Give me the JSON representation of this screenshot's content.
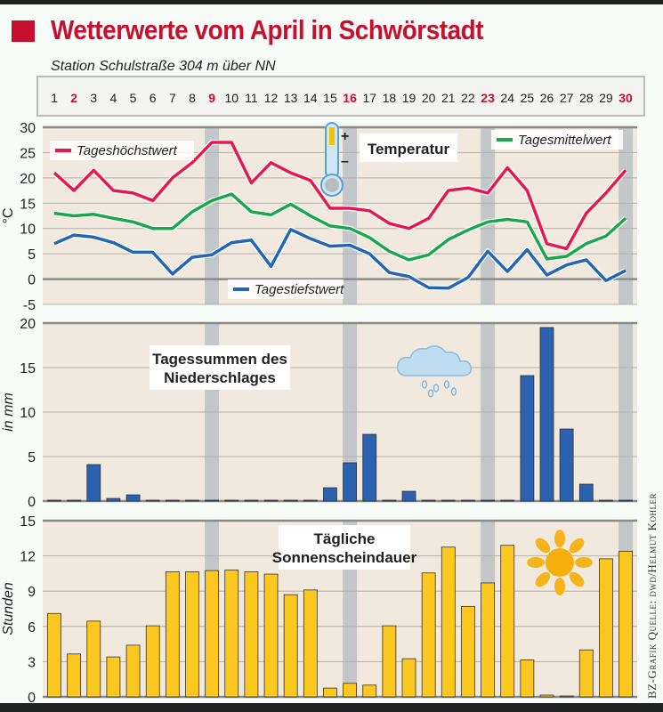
{
  "header": {
    "title": "Wetterwerte vom April in Schwörstadt",
    "subtitle": "Station Schulstraße 304 m über NN",
    "credit": "BZ-Grafik   Quelle: dwd/Helmut Kohler"
  },
  "days": [
    "1",
    "2",
    "3",
    "4",
    "5",
    "6",
    "7",
    "8",
    "9",
    "10",
    "11",
    "12",
    "13",
    "14",
    "15",
    "16",
    "17",
    "18",
    "19",
    "20",
    "21",
    "22",
    "23",
    "24",
    "25",
    "26",
    "27",
    "28",
    "29",
    "30"
  ],
  "sundays": [
    2,
    9,
    16,
    23,
    30
  ],
  "shaded_days": [
    9,
    16,
    23,
    30
  ],
  "colors": {
    "max": "#e8174f",
    "mean": "#1aa64a",
    "min": "#2565b5",
    "precip": "#2a62b0",
    "sun": "#fcc820",
    "sunday": "#c8102e",
    "plot_bg": "#f1e9dd",
    "band": "#c4c7c9"
  },
  "chart_data": [
    {
      "type": "line",
      "title": "Temperatur",
      "ylabel": "°C",
      "ylim": [
        -5,
        30
      ],
      "yticks": [
        "30",
        "25",
        "20",
        "15",
        "10",
        "5",
        "0",
        "-5"
      ],
      "x": [
        1,
        2,
        3,
        4,
        5,
        6,
        7,
        8,
        9,
        10,
        11,
        12,
        13,
        14,
        15,
        16,
        17,
        18,
        19,
        20,
        21,
        22,
        23,
        24,
        25,
        26,
        27,
        28,
        29,
        30
      ],
      "series": [
        {
          "name": "Tageshöchstwert",
          "key": "max",
          "values": [
            21,
            17.5,
            21.5,
            17.5,
            17,
            15.5,
            20,
            23,
            27,
            27,
            19,
            23,
            21,
            19.5,
            14,
            14,
            13.5,
            11,
            10,
            12,
            17.5,
            18,
            17,
            22,
            17.5,
            7,
            6,
            13,
            17,
            21.5
          ]
        },
        {
          "name": "Tagesmittelwert",
          "key": "mean",
          "values": [
            13,
            12.5,
            12.8,
            12,
            11.3,
            10,
            10,
            13.3,
            15.5,
            16.8,
            13.3,
            12.7,
            14.8,
            12.5,
            10.5,
            10,
            8.2,
            5.5,
            3.8,
            4.8,
            7.8,
            9.7,
            11.3,
            11.8,
            11.3,
            4,
            4.5,
            7,
            8.5,
            12
          ]
        },
        {
          "name": "Tagestiefstwert",
          "key": "min",
          "values": [
            7,
            8.7,
            8.3,
            7.2,
            5.3,
            5.3,
            1,
            4.3,
            4.8,
            7.2,
            7.7,
            2.5,
            9.8,
            8,
            6.5,
            6.7,
            5,
            1.3,
            0.5,
            -1.7,
            -1.8,
            0.3,
            5.5,
            1.5,
            5.8,
            0.8,
            2.8,
            3.8,
            -0.3,
            1.7
          ]
        }
      ],
      "thermometer_plus": "+",
      "thermometer_minus": "–"
    },
    {
      "type": "bar",
      "title": "Tagessummen des Niederschlages",
      "title_lines": [
        "Tagessummen des",
        "Niederschlages"
      ],
      "ylabel": "in mm",
      "ylim": [
        0,
        20
      ],
      "yticks": [
        "20",
        "15",
        "10",
        "5",
        "0"
      ],
      "x": [
        1,
        2,
        3,
        4,
        5,
        6,
        7,
        8,
        9,
        10,
        11,
        12,
        13,
        14,
        15,
        16,
        17,
        18,
        19,
        20,
        21,
        22,
        23,
        24,
        25,
        26,
        27,
        28,
        29,
        30
      ],
      "values": [
        0,
        0,
        4.1,
        0.3,
        0.7,
        0,
        0,
        0,
        0,
        0,
        0,
        0,
        0,
        0,
        1.5,
        4.3,
        7.5,
        0,
        1.1,
        0,
        0,
        0,
        0,
        0,
        14.1,
        19.5,
        8.1,
        1.9,
        0,
        0
      ]
    },
    {
      "type": "bar",
      "title": "Tägliche Sonnenscheindauer",
      "title_lines": [
        "Tägliche",
        "Sonnenscheindauer"
      ],
      "ylabel": "Stunden",
      "ylim": [
        0,
        15
      ],
      "yticks": [
        "15",
        "12",
        "9",
        "6",
        "3",
        "0"
      ],
      "x": [
        1,
        2,
        3,
        4,
        5,
        6,
        7,
        8,
        9,
        10,
        11,
        12,
        13,
        14,
        15,
        16,
        17,
        18,
        19,
        20,
        21,
        22,
        23,
        24,
        25,
        26,
        27,
        28,
        29,
        30
      ],
      "values": [
        7.1,
        3.65,
        6.45,
        3.4,
        4.4,
        6.05,
        10.65,
        10.65,
        10.75,
        10.8,
        10.65,
        10.45,
        8.7,
        9.1,
        0.75,
        1.15,
        1.0,
        6.05,
        3.25,
        10.55,
        12.75,
        7.7,
        9.7,
        12.9,
        3.15,
        0.15,
        0.05,
        4.0,
        11.75,
        12.4
      ]
    }
  ]
}
